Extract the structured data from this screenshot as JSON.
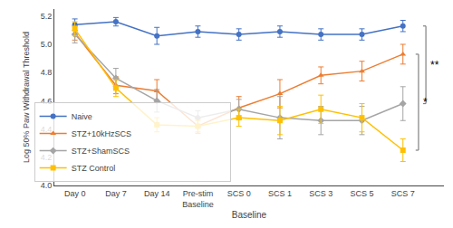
{
  "chart_data": {
    "type": "line",
    "categories": [
      "Day 0",
      "Day 7",
      "Day 14",
      "Pre-stim\nBaseline",
      "SCS 0",
      "SCS 1",
      "SCS 3",
      "SCS 5",
      "SCS 7"
    ],
    "series": [
      {
        "name": "Naive",
        "color": "#4472C4",
        "marker": "circle",
        "line_style": "solid",
        "values": [
          5.14,
          5.16,
          5.06,
          5.09,
          5.07,
          5.09,
          5.07,
          5.07,
          5.13
        ],
        "errors": [
          0.04,
          0.03,
          0.06,
          0.04,
          0.04,
          0.04,
          0.04,
          0.04,
          0.04
        ]
      },
      {
        "name": "STZ+10kHzSCS",
        "color": "#ED7D31",
        "marker": "triangle-up",
        "line_style": "solid",
        "values": [
          5.08,
          4.71,
          4.67,
          4.42,
          4.55,
          4.65,
          4.78,
          4.81,
          4.93
        ],
        "errors": [
          0.05,
          0.06,
          0.08,
          0.05,
          0.08,
          0.1,
          0.06,
          0.07,
          0.07
        ]
      },
      {
        "name": "STZ+ShamSCS",
        "color": "#A5A5A5",
        "marker": "diamond",
        "line_style": "solid",
        "values": [
          5.07,
          4.76,
          4.6,
          4.48,
          4.54,
          4.48,
          4.46,
          4.46,
          4.58
        ],
        "errors": [
          0.06,
          0.07,
          0.08,
          0.05,
          0.07,
          0.15,
          0.1,
          0.1,
          0.12
        ]
      },
      {
        "name": "STZ Control",
        "color": "#FFC000",
        "marker": "square",
        "line_style": "solid",
        "values": [
          5.11,
          4.69,
          4.43,
          4.42,
          4.48,
          4.46,
          4.54,
          4.48,
          4.25
        ],
        "errors": [
          0.05,
          0.06,
          0.05,
          0.04,
          0.06,
          0.1,
          0.1,
          0.1,
          0.08
        ]
      }
    ],
    "xlabel": "Baseline",
    "ylabel": "Log 50% Paw Withdrawal Threshold",
    "ylim": [
      4.0,
      5.25
    ],
    "yticks": [
      {
        "value": 4.0,
        "label": "4.0"
      },
      4.2,
      4.4,
      4.6,
      4.8,
      {
        "value": 5.0,
        "label": "5.0"
      },
      5.2
    ],
    "grid": false,
    "legend": "lower left",
    "annotations": [
      {
        "text": "*",
        "y_top": 4.93,
        "y_bot": 4.25
      },
      {
        "text": "**",
        "y_top": 5.13,
        "y_bot": 4.58
      }
    ]
  }
}
